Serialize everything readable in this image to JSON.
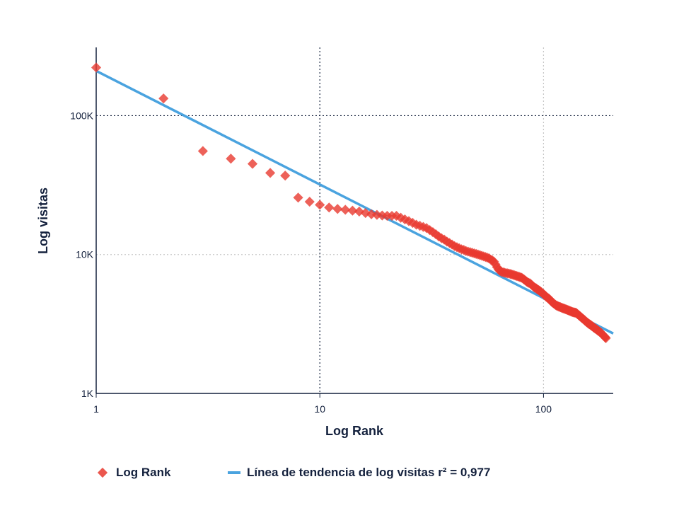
{
  "chart_data": {
    "type": "scatter",
    "xscale": "log",
    "yscale": "log",
    "xlabel": "Log Rank",
    "ylabel": "Log visitas",
    "xlim": [
      1,
      205
    ],
    "ylim": [
      1000,
      310000
    ],
    "x_ticks": [
      {
        "value": 1,
        "label": "1"
      },
      {
        "value": 10,
        "label": "10"
      },
      {
        "value": 100,
        "label": "100"
      }
    ],
    "y_ticks": [
      {
        "value": 1000,
        "label": "1K"
      },
      {
        "value": 10000,
        "label": "10K"
      },
      {
        "value": 100000,
        "label": "100K"
      }
    ],
    "grid": true,
    "legend_position": "bottom",
    "series": [
      {
        "name": "Log Rank",
        "kind": "scatter",
        "color": "#e8392f",
        "x_note": "rank = index + 1",
        "values": [
          222000,
          133000,
          55600,
          49000,
          45000,
          38700,
          37000,
          25700,
          24000,
          22800,
          21800,
          21300,
          21000,
          20700,
          20400,
          19900,
          19500,
          19300,
          19100,
          19000,
          19000,
          19000,
          18400,
          17900,
          17400,
          16900,
          16400,
          16100,
          15800,
          15500,
          15000,
          14500,
          14000,
          13500,
          13100,
          12800,
          12400,
          12100,
          11800,
          11500,
          11300,
          11100,
          10900,
          10800,
          10600,
          10500,
          10400,
          10300,
          10200,
          10100,
          10000,
          9900,
          9800,
          9700,
          9600,
          9500,
          9400,
          9200,
          9100,
          8900,
          8500,
          8100,
          7800,
          7600,
          7500,
          7450,
          7400,
          7350,
          7320,
          7300,
          7250,
          7200,
          7150,
          7100,
          7050,
          7000,
          6950,
          6900,
          6850,
          6800,
          6700,
          6600,
          6500,
          6400,
          6300,
          6250,
          6200,
          6100,
          6000,
          5900,
          5800,
          5750,
          5700,
          5600,
          5550,
          5500,
          5400,
          5350,
          5250,
          5200,
          5100,
          5050,
          4950,
          4900,
          4850,
          4800,
          4700,
          4650,
          4550,
          4500,
          4450,
          4400,
          4350,
          4300,
          4280,
          4250,
          4220,
          4200,
          4180,
          4150,
          4130,
          4110,
          4090,
          4070,
          4050,
          4030,
          4010,
          3990,
          3970,
          3950,
          3930,
          3910,
          3890,
          3870,
          3850,
          3840,
          3830,
          3820,
          3810,
          3800,
          3760,
          3720,
          3690,
          3650,
          3620,
          3580,
          3550,
          3510,
          3480,
          3450,
          3420,
          3390,
          3350,
          3320,
          3290,
          3260,
          3240,
          3210,
          3180,
          3160,
          3140,
          3120,
          3100,
          3070,
          3050,
          3030,
          3000,
          2980,
          2960,
          2940,
          2920,
          2900,
          2880,
          2860,
          2840,
          2820,
          2800,
          2780,
          2760,
          2750,
          2720,
          2700,
          2670,
          2650,
          2620,
          2600,
          2580,
          2550,
          2530,
          2500
        ]
      },
      {
        "name": "Línea de tendencia de log visitas r² = 0,977",
        "kind": "line",
        "color": "#4aa3df",
        "x": [
          1,
          205
        ],
        "y": [
          210000,
          2700
        ]
      }
    ]
  }
}
